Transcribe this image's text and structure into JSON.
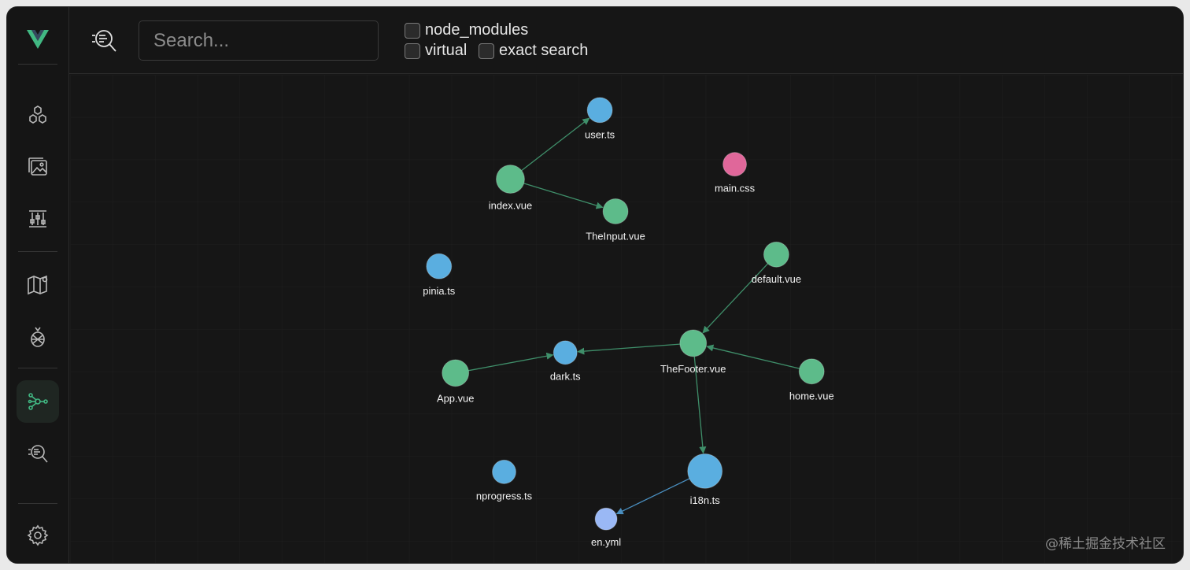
{
  "toolbar": {
    "search_placeholder": "Search...",
    "options": [
      {
        "label": "node_modules",
        "checked": false
      },
      {
        "label": "virtual",
        "checked": false
      },
      {
        "label": "exact search",
        "checked": false
      }
    ]
  },
  "sidebar": {
    "items": [
      {
        "icon": "vue-logo-icon"
      },
      {
        "icon": "components-icon"
      },
      {
        "icon": "assets-icon"
      },
      {
        "icon": "timeline-icon"
      },
      {
        "icon": "routes-map-icon"
      },
      {
        "icon": "pinia-icon"
      },
      {
        "icon": "module-graph-icon",
        "active": true
      },
      {
        "icon": "inspect-icon"
      },
      {
        "icon": "settings-icon"
      }
    ]
  },
  "colors": {
    "vue": "#5dbb8a",
    "ts": "#5aaee0",
    "css": "#e0679a",
    "yml": "#9ab8f5",
    "edge": "#3f8f6a"
  },
  "graph": {
    "nodes": [
      {
        "id": "user",
        "label": "user.ts",
        "kind": "ts"
      },
      {
        "id": "index",
        "label": "index.vue",
        "kind": "vue"
      },
      {
        "id": "theinput",
        "label": "TheInput.vue",
        "kind": "vue"
      },
      {
        "id": "maincss",
        "label": "main.css",
        "kind": "css"
      },
      {
        "id": "pinia",
        "label": "pinia.ts",
        "kind": "ts"
      },
      {
        "id": "default",
        "label": "default.vue",
        "kind": "vue"
      },
      {
        "id": "dark",
        "label": "dark.ts",
        "kind": "ts"
      },
      {
        "id": "thefooter",
        "label": "TheFooter.vue",
        "kind": "vue"
      },
      {
        "id": "app",
        "label": "App.vue",
        "kind": "vue"
      },
      {
        "id": "home",
        "label": "home.vue",
        "kind": "vue"
      },
      {
        "id": "nprogress",
        "label": "nprogress.ts",
        "kind": "ts"
      },
      {
        "id": "i18n",
        "label": "i18n.ts",
        "kind": "ts"
      },
      {
        "id": "enyml",
        "label": "en.yml",
        "kind": "yml"
      }
    ],
    "edges": [
      {
        "from": "index",
        "to": "user"
      },
      {
        "from": "index",
        "to": "theinput"
      },
      {
        "from": "default",
        "to": "thefooter"
      },
      {
        "from": "thefooter",
        "to": "dark"
      },
      {
        "from": "app",
        "to": "dark"
      },
      {
        "from": "home",
        "to": "thefooter"
      },
      {
        "from": "thefooter",
        "to": "i18n"
      },
      {
        "from": "i18n",
        "to": "enyml"
      }
    ]
  },
  "watermark": "@稀土掘金技术社区"
}
